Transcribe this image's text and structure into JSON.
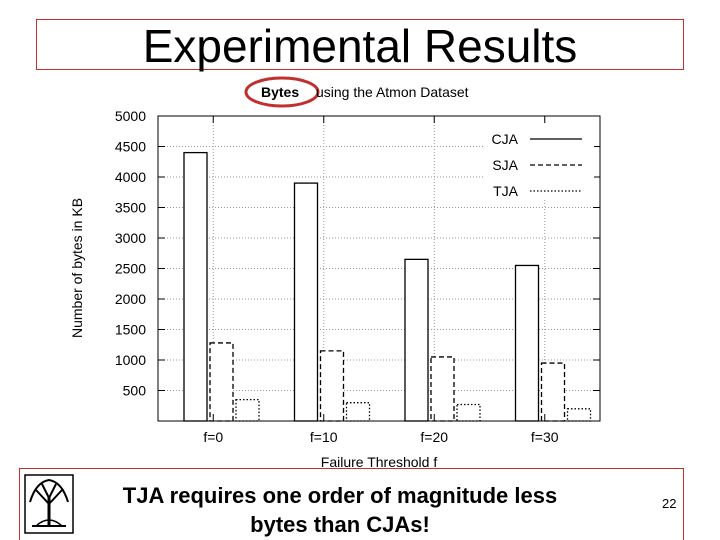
{
  "slide": {
    "title": "Experimental Results",
    "caption": "TJA requires one order of magnitude less bytes than CJAs!",
    "page_number": "22",
    "highlight_color": "#c0302f"
  },
  "logo": {
    "icon": "tree-emblem-icon"
  },
  "chart_data": {
    "type": "bar",
    "title_highlight": "Bytes",
    "title_rest": "using the Atmon Dataset",
    "xlabel": "Failure Threshold f",
    "ylabel": "Number of bytes in KB",
    "categories": [
      "f=0",
      "f=10",
      "f=20",
      "f=30"
    ],
    "ylim": [
      0,
      5000
    ],
    "yticks": [
      500,
      1000,
      1500,
      2000,
      2500,
      3000,
      3500,
      4000,
      4500,
      5000
    ],
    "grid": true,
    "legend_position": "top-right",
    "series": [
      {
        "name": "CJA",
        "values": [
          4400,
          3900,
          2650,
          2550
        ],
        "style": "solid"
      },
      {
        "name": "SJA",
        "values": [
          1280,
          1150,
          1050,
          950
        ],
        "style": "dashed"
      },
      {
        "name": "TJA",
        "values": [
          350,
          300,
          270,
          200
        ],
        "style": "dotted"
      }
    ]
  }
}
